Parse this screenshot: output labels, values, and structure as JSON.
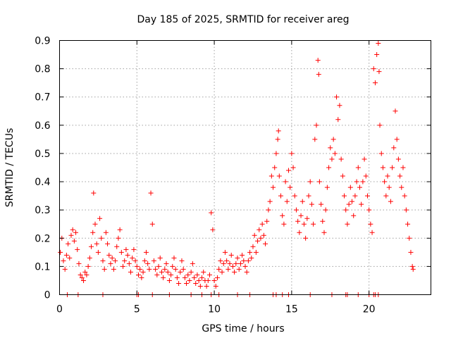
{
  "chart_data": {
    "type": "scatter",
    "title": "Day 185 of 2025, SRMTID for receiver areg",
    "xlabel": "GPS time / hours",
    "ylabel": "SRMTID / TECUs",
    "xlim": [
      0,
      24
    ],
    "ylim": [
      0,
      0.9
    ],
    "xticks": [
      0,
      5,
      10,
      15,
      20
    ],
    "xtick_labels": [
      "0",
      "5",
      "10",
      "15",
      "20"
    ],
    "yticks": [
      0,
      0.1,
      0.2,
      0.3,
      0.4,
      0.5,
      0.6,
      0.7,
      0.8,
      0.9
    ],
    "ytick_labels": [
      "0",
      "0.1",
      "0.2",
      "0.3",
      "0.4",
      "0.5",
      "0.6",
      "0.7",
      "0.8",
      "0.9"
    ],
    "grid": true,
    "marker": "+",
    "color": "#ff0000",
    "series": [
      {
        "name": "areg",
        "points": [
          [
            0.05,
            0.15
          ],
          [
            0.15,
            0.2
          ],
          [
            0.25,
            0.12
          ],
          [
            0.35,
            0.09
          ],
          [
            0.45,
            0.14
          ],
          [
            0.55,
            0.18
          ],
          [
            0.65,
            0.13
          ],
          [
            0.75,
            0.21
          ],
          [
            0.85,
            0.23
          ],
          [
            0.95,
            0.19
          ],
          [
            1.05,
            0.22
          ],
          [
            1.15,
            0.16
          ],
          [
            1.25,
            0.11
          ],
          [
            1.35,
            0.07
          ],
          [
            1.45,
            0.06
          ],
          [
            1.55,
            0.05
          ],
          [
            1.65,
            0.08
          ],
          [
            1.75,
            0.07
          ],
          [
            1.85,
            0.1
          ],
          [
            1.95,
            0.13
          ],
          [
            2.05,
            0.17
          ],
          [
            2.15,
            0.22
          ],
          [
            2.2,
            0.36
          ],
          [
            2.3,
            0.25
          ],
          [
            2.4,
            0.18
          ],
          [
            2.5,
            0.15
          ],
          [
            2.6,
            0.27
          ],
          [
            2.7,
            0.2
          ],
          [
            2.8,
            0.12
          ],
          [
            2.9,
            0.09
          ],
          [
            3.0,
            0.22
          ],
          [
            3.1,
            0.18
          ],
          [
            3.2,
            0.14
          ],
          [
            3.3,
            0.11
          ],
          [
            3.4,
            0.13
          ],
          [
            3.5,
            0.09
          ],
          [
            3.6,
            0.12
          ],
          [
            3.7,
            0.17
          ],
          [
            3.8,
            0.2
          ],
          [
            3.9,
            0.23
          ],
          [
            4.0,
            0.15
          ],
          [
            4.1,
            0.1
          ],
          [
            4.2,
            0.12
          ],
          [
            4.3,
            0.16
          ],
          [
            4.4,
            0.14
          ],
          [
            4.5,
            0.11
          ],
          [
            4.6,
            0.08
          ],
          [
            4.7,
            0.13
          ],
          [
            4.8,
            0.16
          ],
          [
            4.9,
            0.12
          ],
          [
            5.0,
            0.1
          ],
          [
            5.1,
            0.07
          ],
          [
            5.2,
            0.09
          ],
          [
            5.3,
            0.06
          ],
          [
            5.4,
            0.08
          ],
          [
            5.5,
            0.12
          ],
          [
            5.6,
            0.15
          ],
          [
            5.7,
            0.11
          ],
          [
            5.8,
            0.09
          ],
          [
            5.9,
            0.36
          ],
          [
            6.0,
            0.25
          ],
          [
            6.1,
            0.12
          ],
          [
            6.2,
            0.09
          ],
          [
            6.3,
            0.07
          ],
          [
            6.4,
            0.1
          ],
          [
            6.5,
            0.13
          ],
          [
            6.6,
            0.08
          ],
          [
            6.7,
            0.06
          ],
          [
            6.8,
            0.09
          ],
          [
            6.9,
            0.11
          ],
          [
            7.0,
            0.08
          ],
          [
            7.1,
            0.05
          ],
          [
            7.2,
            0.07
          ],
          [
            7.3,
            0.1
          ],
          [
            7.4,
            0.13
          ],
          [
            7.5,
            0.09
          ],
          [
            7.6,
            0.06
          ],
          [
            7.7,
            0.04
          ],
          [
            7.8,
            0.08
          ],
          [
            7.9,
            0.12
          ],
          [
            8.0,
            0.09
          ],
          [
            8.1,
            0.06
          ],
          [
            8.2,
            0.04
          ],
          [
            8.3,
            0.07
          ],
          [
            8.4,
            0.05
          ],
          [
            8.5,
            0.08
          ],
          [
            8.6,
            0.11
          ],
          [
            8.7,
            0.06
          ],
          [
            8.8,
            0.04
          ],
          [
            8.9,
            0.07
          ],
          [
            9.0,
            0.05
          ],
          [
            9.1,
            0.03
          ],
          [
            9.2,
            0.06
          ],
          [
            9.3,
            0.08
          ],
          [
            9.4,
            0.05
          ],
          [
            9.5,
            0.03
          ],
          [
            9.6,
            0.05
          ],
          [
            9.7,
            0.07
          ],
          [
            9.8,
            0.29
          ],
          [
            9.9,
            0.23
          ],
          [
            10.0,
            0.05
          ],
          [
            10.1,
            0.03
          ],
          [
            10.2,
            0.06
          ],
          [
            10.3,
            0.09
          ],
          [
            10.4,
            0.12
          ],
          [
            10.5,
            0.08
          ],
          [
            10.6,
            0.11
          ],
          [
            10.7,
            0.15
          ],
          [
            10.8,
            0.12
          ],
          [
            10.9,
            0.09
          ],
          [
            11.0,
            0.11
          ],
          [
            11.1,
            0.14
          ],
          [
            11.2,
            0.1
          ],
          [
            11.3,
            0.08
          ],
          [
            11.4,
            0.11
          ],
          [
            11.5,
            0.13
          ],
          [
            11.6,
            0.09
          ],
          [
            11.7,
            0.11
          ],
          [
            11.8,
            0.14
          ],
          [
            11.9,
            0.12
          ],
          [
            12.0,
            0.1
          ],
          [
            12.1,
            0.08
          ],
          [
            12.2,
            0.12
          ],
          [
            12.3,
            0.15
          ],
          [
            12.4,
            0.13
          ],
          [
            12.5,
            0.17
          ],
          [
            12.6,
            0.21
          ],
          [
            12.7,
            0.15
          ],
          [
            12.8,
            0.19
          ],
          [
            12.9,
            0.23
          ],
          [
            13.0,
            0.2
          ],
          [
            13.1,
            0.25
          ],
          [
            13.2,
            0.21
          ],
          [
            13.3,
            0.18
          ],
          [
            13.4,
            0.26
          ],
          [
            13.5,
            0.3
          ],
          [
            13.6,
            0.33
          ],
          [
            13.7,
            0.42
          ],
          [
            13.8,
            0.38
          ],
          [
            13.9,
            0.45
          ],
          [
            14.0,
            0.5
          ],
          [
            14.1,
            0.55
          ],
          [
            14.15,
            0.58
          ],
          [
            14.2,
            0.42
          ],
          [
            14.3,
            0.35
          ],
          [
            14.4,
            0.28
          ],
          [
            14.5,
            0.25
          ],
          [
            14.6,
            0.4
          ],
          [
            14.7,
            0.33
          ],
          [
            14.8,
            0.44
          ],
          [
            14.9,
            0.38
          ],
          [
            15.0,
            0.5
          ],
          [
            15.1,
            0.45
          ],
          [
            15.2,
            0.35
          ],
          [
            15.3,
            0.3
          ],
          [
            15.4,
            0.26
          ],
          [
            15.5,
            0.22
          ],
          [
            15.6,
            0.28
          ],
          [
            15.7,
            0.33
          ],
          [
            15.8,
            0.25
          ],
          [
            15.9,
            0.2
          ],
          [
            16.0,
            0.27
          ],
          [
            16.1,
            0.35
          ],
          [
            16.2,
            0.4
          ],
          [
            16.3,
            0.32
          ],
          [
            16.4,
            0.25
          ],
          [
            16.5,
            0.55
          ],
          [
            16.6,
            0.6
          ],
          [
            16.7,
            0.83
          ],
          [
            16.75,
            0.78
          ],
          [
            16.8,
            0.4
          ],
          [
            16.9,
            0.32
          ],
          [
            17.0,
            0.26
          ],
          [
            17.1,
            0.22
          ],
          [
            17.2,
            0.3
          ],
          [
            17.3,
            0.38
          ],
          [
            17.4,
            0.45
          ],
          [
            17.5,
            0.52
          ],
          [
            17.6,
            0.48
          ],
          [
            17.7,
            0.55
          ],
          [
            17.8,
            0.5
          ],
          [
            17.9,
            0.7
          ],
          [
            18.0,
            0.62
          ],
          [
            18.1,
            0.67
          ],
          [
            18.2,
            0.48
          ],
          [
            18.3,
            0.42
          ],
          [
            18.4,
            0.35
          ],
          [
            18.5,
            0.3
          ],
          [
            18.6,
            0.25
          ],
          [
            18.7,
            0.32
          ],
          [
            18.8,
            0.38
          ],
          [
            18.9,
            0.33
          ],
          [
            19.0,
            0.28
          ],
          [
            19.1,
            0.35
          ],
          [
            19.2,
            0.4
          ],
          [
            19.3,
            0.45
          ],
          [
            19.4,
            0.38
          ],
          [
            19.5,
            0.32
          ],
          [
            19.6,
            0.4
          ],
          [
            19.7,
            0.48
          ],
          [
            19.8,
            0.42
          ],
          [
            19.9,
            0.35
          ],
          [
            20.0,
            0.3
          ],
          [
            20.1,
            0.25
          ],
          [
            20.2,
            0.22
          ],
          [
            20.3,
            0.8
          ],
          [
            20.4,
            0.75
          ],
          [
            20.5,
            0.85
          ],
          [
            20.6,
            0.89
          ],
          [
            20.65,
            0.79
          ],
          [
            20.7,
            0.6
          ],
          [
            20.8,
            0.5
          ],
          [
            20.9,
            0.45
          ],
          [
            21.0,
            0.4
          ],
          [
            21.1,
            0.35
          ],
          [
            21.2,
            0.42
          ],
          [
            21.3,
            0.38
          ],
          [
            21.4,
            0.33
          ],
          [
            21.5,
            0.45
          ],
          [
            21.6,
            0.52
          ],
          [
            21.7,
            0.65
          ],
          [
            21.8,
            0.55
          ],
          [
            21.9,
            0.48
          ],
          [
            22.0,
            0.42
          ],
          [
            22.1,
            0.38
          ],
          [
            22.2,
            0.45
          ],
          [
            22.3,
            0.35
          ],
          [
            22.4,
            0.3
          ],
          [
            22.5,
            0.25
          ],
          [
            22.6,
            0.2
          ],
          [
            22.7,
            0.15
          ],
          [
            22.8,
            0.1
          ],
          [
            22.85,
            0.09
          ]
        ],
        "zero_points": [
          0.5,
          1.2,
          2.8,
          5.0,
          5.1,
          6.0,
          7.1,
          8.5,
          9.2,
          9.8,
          10.3,
          11.5,
          12.3,
          13.8,
          14.0,
          14.4,
          14.8,
          16.2,
          17.6,
          18.5,
          18.6,
          19.3,
          20.0,
          20.3,
          20.4,
          20.6
        ]
      }
    ]
  }
}
